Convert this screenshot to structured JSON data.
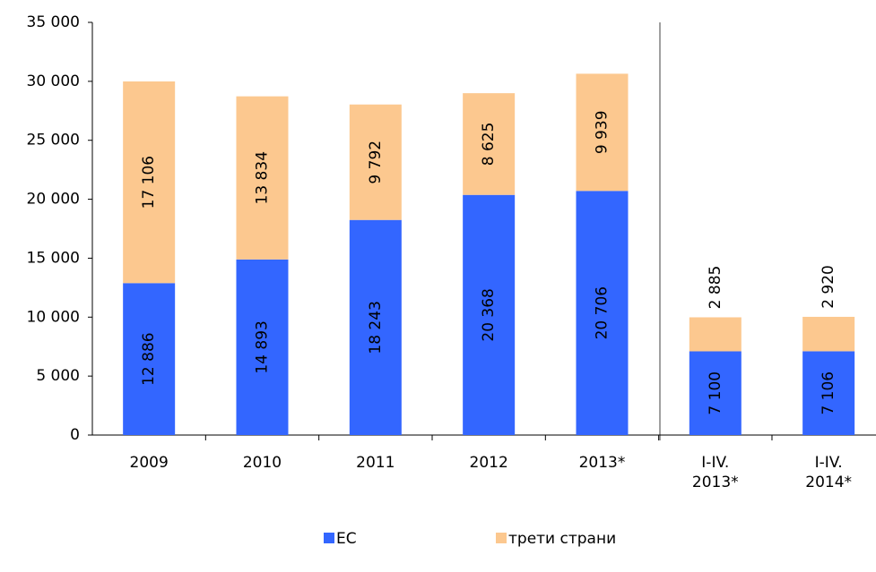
{
  "chart_data": {
    "type": "stacked_bar",
    "categories": [
      "2009",
      "2010",
      "2011",
      "2012",
      "2013*",
      "I-IV. 2013*",
      "I-IV. 2014*"
    ],
    "series": [
      {
        "name": "ЕС",
        "color": "#3366ff",
        "values": [
          12886,
          14893,
          18243,
          20368,
          20706,
          7100,
          7106
        ],
        "value_labels": [
          "12 886",
          "14 893",
          "18 243",
          "20 368",
          "20 706",
          "7 100",
          "7 106"
        ]
      },
      {
        "name": "трети страни",
        "color": "#fcc88f",
        "values": [
          17106,
          13834,
          9792,
          8625,
          9939,
          2885,
          2920
        ],
        "value_labels": [
          "17 106",
          "13 834",
          "9 792",
          "8 625",
          "9 939",
          "2 885",
          "2 920"
        ]
      }
    ],
    "ylim": [
      0,
      35000
    ],
    "yticks": [
      0,
      {
        "value": 5000,
        "label": "5 000"
      },
      {
        "value": 10000,
        "label": "10 000"
      },
      {
        "value": 15000,
        "label": "15 000"
      },
      {
        "value": 20000,
        "label": "20 000"
      },
      {
        "value": 25000,
        "label": "25 000"
      },
      {
        "value": 30000,
        "label": "30 000"
      },
      {
        "value": 35000,
        "label": "35 000"
      }
    ],
    "legend": "bottom"
  }
}
